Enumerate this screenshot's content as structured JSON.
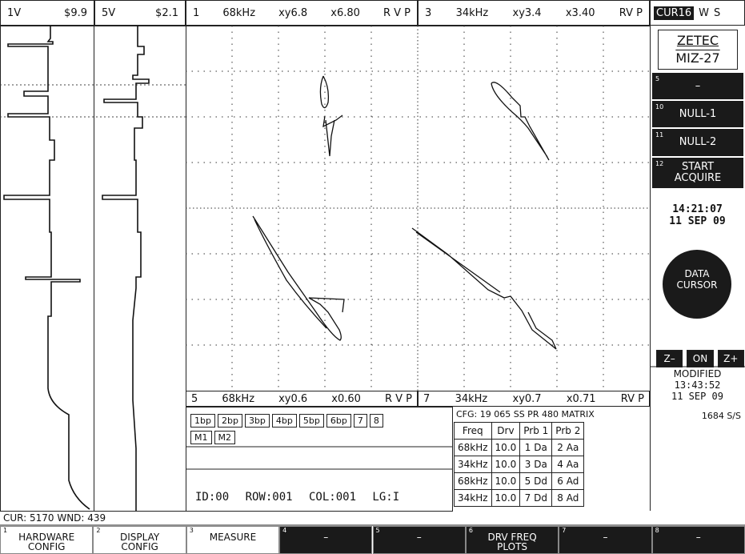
{
  "strip_headers": [
    {
      "channel": "1V",
      "span": "$9.9"
    },
    {
      "channel": "5V",
      "span": "$2.1"
    }
  ],
  "lissajous_headers": [
    {
      "channel": "1",
      "freq": "68kHz",
      "xy": "xy6.8",
      "x": "x6.80",
      "mode": "R V P"
    },
    {
      "channel": "3",
      "freq": "34kHz",
      "xy": "xy3.4",
      "x": "x3.40",
      "mode": "RV P"
    },
    {
      "channel": "5",
      "freq": "68kHz",
      "xy": "xy0.6",
      "x": "x0.60",
      "mode": "R V P"
    },
    {
      "channel": "7",
      "freq": "34kHz",
      "xy": "xy0.7",
      "x": "x0.71",
      "mode": "RV P"
    }
  ],
  "status_indicators": {
    "cursor": "CUR16",
    "w": "W",
    "s": "S"
  },
  "brand": {
    "name": "ZETEC",
    "model": "MIZ-27"
  },
  "side_buttons": [
    {
      "number": "5",
      "label": "–"
    },
    {
      "number": "10",
      "label": "NULL-1"
    },
    {
      "number": "11",
      "label": "NULL-2"
    },
    {
      "number": "12",
      "label": "START ACQUIRE"
    }
  ],
  "clock": {
    "time": "14:21:07",
    "date": "11 SEP 09"
  },
  "data_cursor": "DATA CURSOR",
  "zoom_buttons": [
    "Z–",
    "ON",
    "Z+"
  ],
  "modified": {
    "label": "MODIFIED",
    "time": "13:43:52",
    "date": "11 SEP 09"
  },
  "sample_rate": "1684 S/S",
  "channel_buttons": [
    "1bp",
    "2bp",
    "3bp",
    "4bp",
    "5bp",
    "6bp",
    "7",
    "8"
  ],
  "mix_buttons": [
    "M1",
    "M2"
  ],
  "position": "ID:00 ROW:001 COL:001 LG:I",
  "config_table": {
    "title": "CFG: 19 065 SS PR 480 MATRIX",
    "columns": [
      "Freq",
      "Drv",
      "Prb 1",
      "Prb 2"
    ],
    "rows": [
      [
        "68kHz",
        "10.0",
        "1 Da",
        "2 Aa"
      ],
      [
        "34kHz",
        "10.0",
        "3 Da",
        "4 Aa"
      ],
      [
        "68kHz",
        "10.0",
        "5 Dd",
        "6 Ad"
      ],
      [
        "34kHz",
        "10.0",
        "7 Dd",
        "8 Ad"
      ]
    ]
  },
  "status_line": "CUR: 5170 WND: 439",
  "function_keys": [
    {
      "number": "1",
      "label": "HARDWARE CONFIG"
    },
    {
      "number": "2",
      "label": "DISPLAY CONFIG"
    },
    {
      "number": "3",
      "label": "MEASURE"
    },
    {
      "number": "4",
      "label": "–"
    },
    {
      "number": "5",
      "label": "–"
    },
    {
      "number": "6",
      "label": "DRV FREQ PLOTS"
    },
    {
      "number": "7",
      "label": "–"
    },
    {
      "number": "8",
      "label": "–"
    }
  ]
}
